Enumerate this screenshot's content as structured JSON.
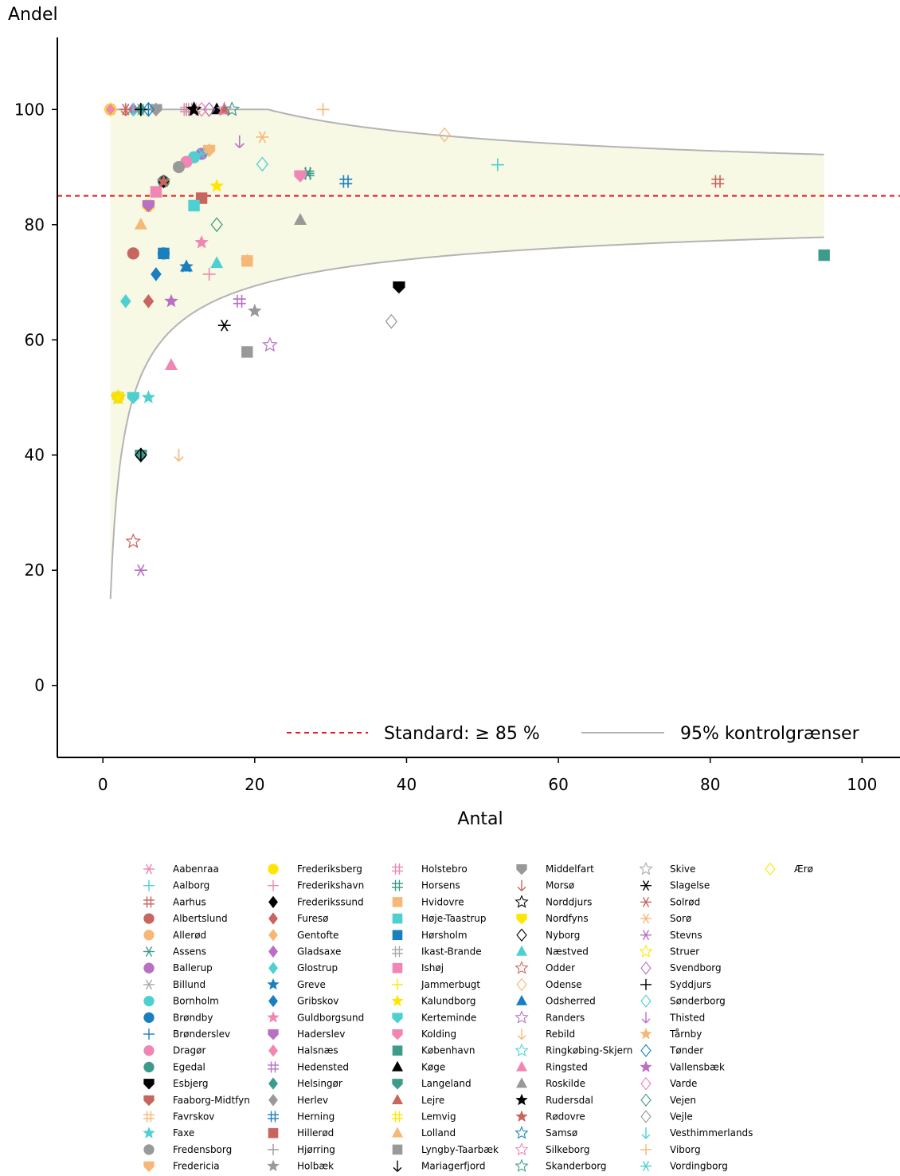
{
  "chart_data": {
    "type": "scatter",
    "title": "",
    "xlabel": "Antal",
    "ylabel": "Andel",
    "xlim": [
      -6,
      105
    ],
    "ylim": [
      -12.5,
      112.5
    ],
    "xticks": [
      0,
      20,
      40,
      60,
      80,
      100
    ],
    "yticks": [
      0,
      20,
      40,
      60,
      80,
      100
    ],
    "standard": {
      "label": "Standard: ≥ 85 %",
      "value": 85,
      "color": "#e41a1c"
    },
    "control_limits": {
      "label": "95% kontrolgrænser",
      "p": 0.85,
      "x_range": [
        1,
        95
      ],
      "fill_color": "#f7f9e4",
      "line_color": "#b3b3b3"
    },
    "series": [
      {
        "name": "Aabenraa",
        "marker": "asterisk",
        "color": "#ef86b4",
        "points": [
          [
            1,
            100
          ]
        ]
      },
      {
        "name": "Aalborg",
        "marker": "plus",
        "color": "#4fd0d0",
        "points": [
          [
            52,
            90.4
          ],
          [
            5,
            100
          ]
        ]
      },
      {
        "name": "Aarhus",
        "marker": "hash",
        "color": "#c9655f",
        "points": [
          [
            81,
            87.5
          ]
        ]
      },
      {
        "name": "Albertslund",
        "marker": "circle",
        "color": "#c9655f",
        "points": [
          [
            4,
            75
          ]
        ]
      },
      {
        "name": "Allerød",
        "marker": "circle",
        "color": "#f7b877",
        "points": [
          [
            1,
            100
          ]
        ]
      },
      {
        "name": "Assens",
        "marker": "asterisk",
        "color": "#3d9b8b",
        "points": [
          [
            27,
            88.9
          ]
        ]
      },
      {
        "name": "Ballerup",
        "marker": "circle",
        "color": "#b86fc4",
        "points": [
          [
            13,
            92.3
          ]
        ]
      },
      {
        "name": "Billund",
        "marker": "asterisk",
        "color": "#a8a8a8",
        "points": [
          [
            5,
            100
          ]
        ]
      },
      {
        "name": "Bornholm",
        "marker": "circle",
        "color": "#4fd0d0",
        "points": [
          [
            12,
            91.7
          ]
        ]
      },
      {
        "name": "Brøndby",
        "marker": "circle",
        "color": "#1a7fbf",
        "points": [
          [
            8,
            75
          ]
        ]
      },
      {
        "name": "Brønderslev",
        "marker": "plus",
        "color": "#1a7fbf",
        "points": [
          [
            6,
            100
          ]
        ]
      },
      {
        "name": "Dragør",
        "marker": "circle",
        "color": "#ef86b4",
        "points": [
          [
            11,
            90.9
          ]
        ]
      },
      {
        "name": "Egedal",
        "marker": "circle",
        "color": "#3d9b8b",
        "points": [
          [
            8,
            87.5
          ]
        ]
      },
      {
        "name": "Esbjerg",
        "marker": "shield",
        "color": "#000000",
        "points": [
          [
            39,
            69.2
          ]
        ]
      },
      {
        "name": "Faaborg-Midtfyn",
        "marker": "shield",
        "color": "#c9655f",
        "points": [
          [
            2,
            50
          ]
        ]
      },
      {
        "name": "Favrskov",
        "marker": "hash",
        "color": "#f7b877",
        "points": [
          [
            6,
            83.3
          ]
        ]
      },
      {
        "name": "Faxe",
        "marker": "star",
        "color": "#4fd0d0",
        "points": [
          [
            6,
            50
          ]
        ]
      },
      {
        "name": "Fredensborg",
        "marker": "circle",
        "color": "#999999",
        "points": [
          [
            10,
            90
          ]
        ]
      },
      {
        "name": "Fredericia",
        "marker": "shield",
        "color": "#f7b877",
        "points": [
          [
            14,
            92.9
          ]
        ]
      },
      {
        "name": "Frederiksberg",
        "marker": "circle",
        "color": "#ffe600",
        "points": [
          [
            6,
            83.3
          ]
        ]
      },
      {
        "name": "Frederikshavn",
        "marker": "plus",
        "color": "#ef86b4",
        "points": [
          [
            14,
            71.4
          ]
        ]
      },
      {
        "name": "Frederikssund",
        "marker": "diamond",
        "color": "#000000",
        "points": [
          [
            8,
            87.5
          ]
        ]
      },
      {
        "name": "Furesø",
        "marker": "diamond",
        "color": "#c9655f",
        "points": [
          [
            6,
            66.7
          ]
        ]
      },
      {
        "name": "Gentofte",
        "marker": "diamond",
        "color": "#f7b877",
        "points": [
          [
            14,
            92.9
          ]
        ]
      },
      {
        "name": "Gladsaxe",
        "marker": "diamond",
        "color": "#b86fc4",
        "points": [
          [
            4,
            100
          ]
        ]
      },
      {
        "name": "Glostrup",
        "marker": "diamond",
        "color": "#4fd0d0",
        "points": [
          [
            3,
            66.7
          ]
        ]
      },
      {
        "name": "Greve",
        "marker": "star",
        "color": "#1a7fbf",
        "points": [
          [
            11,
            72.7
          ]
        ]
      },
      {
        "name": "Gribskov",
        "marker": "diamond",
        "color": "#1a7fbf",
        "points": [
          [
            7,
            71.4
          ]
        ]
      },
      {
        "name": "Guldborgsund",
        "marker": "star",
        "color": "#ef86b4",
        "points": [
          [
            13,
            76.9
          ]
        ]
      },
      {
        "name": "Haderslev",
        "marker": "shield",
        "color": "#b86fc4",
        "points": [
          [
            6,
            83.3
          ]
        ]
      },
      {
        "name": "Halsnæs",
        "marker": "diamond",
        "color": "#ef86b4",
        "points": [
          [
            1,
            100
          ]
        ]
      },
      {
        "name": "Hedensted",
        "marker": "hash",
        "color": "#b86fc4",
        "points": [
          [
            18,
            66.7
          ]
        ]
      },
      {
        "name": "Helsingør",
        "marker": "diamond",
        "color": "#3d9b8b",
        "points": [
          [
            5,
            100
          ]
        ]
      },
      {
        "name": "Herlev",
        "marker": "diamond",
        "color": "#999999",
        "points": [
          [
            7,
            100
          ]
        ]
      },
      {
        "name": "Herning",
        "marker": "hash",
        "color": "#1a7fbf",
        "points": [
          [
            32,
            87.5
          ]
        ]
      },
      {
        "name": "Hillerød",
        "marker": "square",
        "color": "#c9655f",
        "points": [
          [
            13,
            84.6
          ]
        ]
      },
      {
        "name": "Hjørring",
        "marker": "plus",
        "color": "#999999",
        "points": [
          [
            11,
            100
          ]
        ]
      },
      {
        "name": "Holbæk",
        "marker": "star",
        "color": "#999999",
        "points": [
          [
            20,
            65
          ]
        ]
      },
      {
        "name": "Holstebro",
        "marker": "hash",
        "color": "#ef86b4",
        "points": [
          [
            11,
            100
          ]
        ]
      },
      {
        "name": "Horsens",
        "marker": "hash",
        "color": "#3d9b8b",
        "points": [
          [
            27,
            88.9
          ]
        ]
      },
      {
        "name": "Hvidovre",
        "marker": "square",
        "color": "#f7b877",
        "points": [
          [
            19,
            73.7
          ]
        ]
      },
      {
        "name": "Høje-Taastrup",
        "marker": "square",
        "color": "#4fd0d0",
        "points": [
          [
            12,
            83.3
          ]
        ]
      },
      {
        "name": "Hørsholm",
        "marker": "square",
        "color": "#1a7fbf",
        "points": [
          [
            8,
            75
          ]
        ]
      },
      {
        "name": "Ikast-Brande",
        "marker": "hash",
        "color": "#a8a8a8",
        "points": [
          [
            12,
            100
          ]
        ]
      },
      {
        "name": "Ishøj",
        "marker": "square",
        "color": "#ef86b4",
        "points": [
          [
            7,
            85.7
          ]
        ]
      },
      {
        "name": "Jammerbugt",
        "marker": "plus",
        "color": "#ffe600",
        "points": [
          [
            4,
            100
          ]
        ]
      },
      {
        "name": "Kalundborg",
        "marker": "star",
        "color": "#ffe600",
        "points": [
          [
            15,
            86.7
          ]
        ]
      },
      {
        "name": "Kerteminde",
        "marker": "shield",
        "color": "#4fd0d0",
        "points": [
          [
            4,
            50
          ]
        ]
      },
      {
        "name": "Kolding",
        "marker": "shield",
        "color": "#ef86b4",
        "points": [
          [
            26,
            88.5
          ]
        ]
      },
      {
        "name": "København",
        "marker": "square",
        "color": "#3d9b8b",
        "points": [
          [
            95,
            74.7
          ]
        ]
      },
      {
        "name": "Køge",
        "marker": "triangle",
        "color": "#000000",
        "points": [
          [
            15,
            100
          ]
        ]
      },
      {
        "name": "Langeland",
        "marker": "shield",
        "color": "#3d9b8b",
        "points": [
          [
            5,
            40
          ]
        ]
      },
      {
        "name": "Lejre",
        "marker": "triangle",
        "color": "#c9655f",
        "points": [
          [
            16,
            100
          ]
        ]
      },
      {
        "name": "Lemvig",
        "marker": "hash",
        "color": "#ffe600",
        "points": [
          [
            2,
            50
          ]
        ]
      },
      {
        "name": "Lolland",
        "marker": "triangle",
        "color": "#f7b877",
        "points": [
          [
            5,
            80
          ]
        ]
      },
      {
        "name": "Lyngby-Taarbæk",
        "marker": "square",
        "color": "#999999",
        "points": [
          [
            19,
            57.9
          ]
        ]
      },
      {
        "name": "Mariagerfjord",
        "marker": "arrowdown",
        "color": "#000000",
        "points": [
          [
            5,
            40
          ]
        ]
      },
      {
        "name": "Middelfart",
        "marker": "shield",
        "color": "#999999",
        "points": [
          [
            7,
            100
          ]
        ]
      },
      {
        "name": "Morsø",
        "marker": "arrowdown",
        "color": "#c9655f",
        "points": [
          [
            3,
            100
          ]
        ]
      },
      {
        "name": "Norddjurs",
        "marker": "star-open",
        "color": "#000000",
        "points": [
          [
            12,
            100
          ]
        ]
      },
      {
        "name": "Nordfyns",
        "marker": "shield",
        "color": "#ffe600",
        "points": [
          [
            2,
            50
          ]
        ]
      },
      {
        "name": "Nyborg",
        "marker": "diamond-open",
        "color": "#000000",
        "points": [
          [
            5,
            40
          ]
        ]
      },
      {
        "name": "Næstved",
        "marker": "triangle",
        "color": "#4fd0d0",
        "points": [
          [
            15,
            73.3
          ]
        ]
      },
      {
        "name": "Odder",
        "marker": "star-open",
        "color": "#c9655f",
        "points": [
          [
            4,
            25
          ]
        ]
      },
      {
        "name": "Odense",
        "marker": "diamond-open",
        "color": "#f7b877",
        "points": [
          [
            45,
            95.6
          ]
        ]
      },
      {
        "name": "Odsherred",
        "marker": "triangle",
        "color": "#1a7fbf",
        "points": [
          [
            11,
            72.7
          ]
        ]
      },
      {
        "name": "Randers",
        "marker": "star-open",
        "color": "#b86fc4",
        "points": [
          [
            22,
            59.1
          ]
        ]
      },
      {
        "name": "Rebild",
        "marker": "arrowdown",
        "color": "#f7b877",
        "points": [
          [
            10,
            40
          ]
        ]
      },
      {
        "name": "Ringkøbing-Skjern",
        "marker": "star-open",
        "color": "#4fd0d0",
        "points": [
          [
            16,
            100
          ]
        ]
      },
      {
        "name": "Ringsted",
        "marker": "triangle",
        "color": "#ef86b4",
        "points": [
          [
            9,
            55.6
          ]
        ]
      },
      {
        "name": "Roskilde",
        "marker": "triangle",
        "color": "#999999",
        "points": [
          [
            26,
            80.8
          ]
        ]
      },
      {
        "name": "Rudersdal",
        "marker": "star",
        "color": "#000000",
        "points": [
          [
            12,
            100
          ]
        ]
      },
      {
        "name": "Rødovre",
        "marker": "star",
        "color": "#c9655f",
        "points": [
          [
            8,
            87.5
          ]
        ]
      },
      {
        "name": "Samsø",
        "marker": "star-open",
        "color": "#1a7fbf",
        "points": [
          [
            2,
            50
          ]
        ]
      },
      {
        "name": "Silkeborg",
        "marker": "star-open",
        "color": "#ef86b4",
        "points": [
          [
            16,
            100
          ]
        ]
      },
      {
        "name": "Skanderborg",
        "marker": "star-open",
        "color": "#3d9b8b",
        "points": [
          [
            17,
            100
          ]
        ]
      },
      {
        "name": "Skive",
        "marker": "star-open",
        "color": "#a8a8a8",
        "points": [
          [
            2,
            50
          ]
        ]
      },
      {
        "name": "Slagelse",
        "marker": "asterisk",
        "color": "#000000",
        "points": [
          [
            16,
            62.5
          ]
        ]
      },
      {
        "name": "Solrød",
        "marker": "asterisk",
        "color": "#c9655f",
        "points": [
          [
            3,
            100
          ]
        ]
      },
      {
        "name": "Sorø",
        "marker": "asterisk",
        "color": "#f7b877",
        "points": [
          [
            21,
            95.2
          ]
        ]
      },
      {
        "name": "Stevns",
        "marker": "asterisk",
        "color": "#b86fc4",
        "points": [
          [
            5,
            20
          ]
        ]
      },
      {
        "name": "Struer",
        "marker": "star-open",
        "color": "#ffe600",
        "points": [
          [
            2,
            50
          ]
        ]
      },
      {
        "name": "Svendborg",
        "marker": "diamond-open",
        "color": "#b86fc4",
        "points": [
          [
            14,
            100
          ]
        ]
      },
      {
        "name": "Syddjurs",
        "marker": "plus",
        "color": "#000000",
        "points": [
          [
            5,
            100
          ]
        ]
      },
      {
        "name": "Sønderborg",
        "marker": "diamond-open",
        "color": "#4fd0d0",
        "points": [
          [
            21,
            90.5
          ]
        ]
      },
      {
        "name": "Thisted",
        "marker": "arrowdown",
        "color": "#b86fc4",
        "points": [
          [
            18,
            94.4
          ]
        ]
      },
      {
        "name": "Tårnby",
        "marker": "star",
        "color": "#f7b877",
        "points": [
          [
            19,
            73.7
          ]
        ]
      },
      {
        "name": "Tønder",
        "marker": "diamond-open",
        "color": "#1a7fbf",
        "points": [
          [
            6,
            100
          ]
        ]
      },
      {
        "name": "Vallensbæk",
        "marker": "star",
        "color": "#b86fc4",
        "points": [
          [
            9,
            66.7
          ]
        ]
      },
      {
        "name": "Varde",
        "marker": "diamond-open",
        "color": "#ef86b4",
        "points": [
          [
            13,
            100
          ]
        ]
      },
      {
        "name": "Vejen",
        "marker": "diamond-open",
        "color": "#3d9b8b",
        "points": [
          [
            15,
            80
          ]
        ]
      },
      {
        "name": "Vejle",
        "marker": "diamond-open",
        "color": "#999999",
        "points": [
          [
            38,
            63.2
          ]
        ]
      },
      {
        "name": "Vesthimmerlands",
        "marker": "arrowdown",
        "color": "#4fd0d0",
        "points": [
          [
            4,
            100
          ]
        ]
      },
      {
        "name": "Viborg",
        "marker": "plus",
        "color": "#f7b877",
        "points": [
          [
            29,
            100
          ]
        ]
      },
      {
        "name": "Vordingborg",
        "marker": "asterisk",
        "color": "#4fd0d0",
        "points": [
          [
            13,
            92.3
          ]
        ]
      },
      {
        "name": "Ærø",
        "marker": "diamond-open",
        "color": "#ffe600",
        "points": [
          [
            1,
            100
          ]
        ]
      }
    ]
  }
}
